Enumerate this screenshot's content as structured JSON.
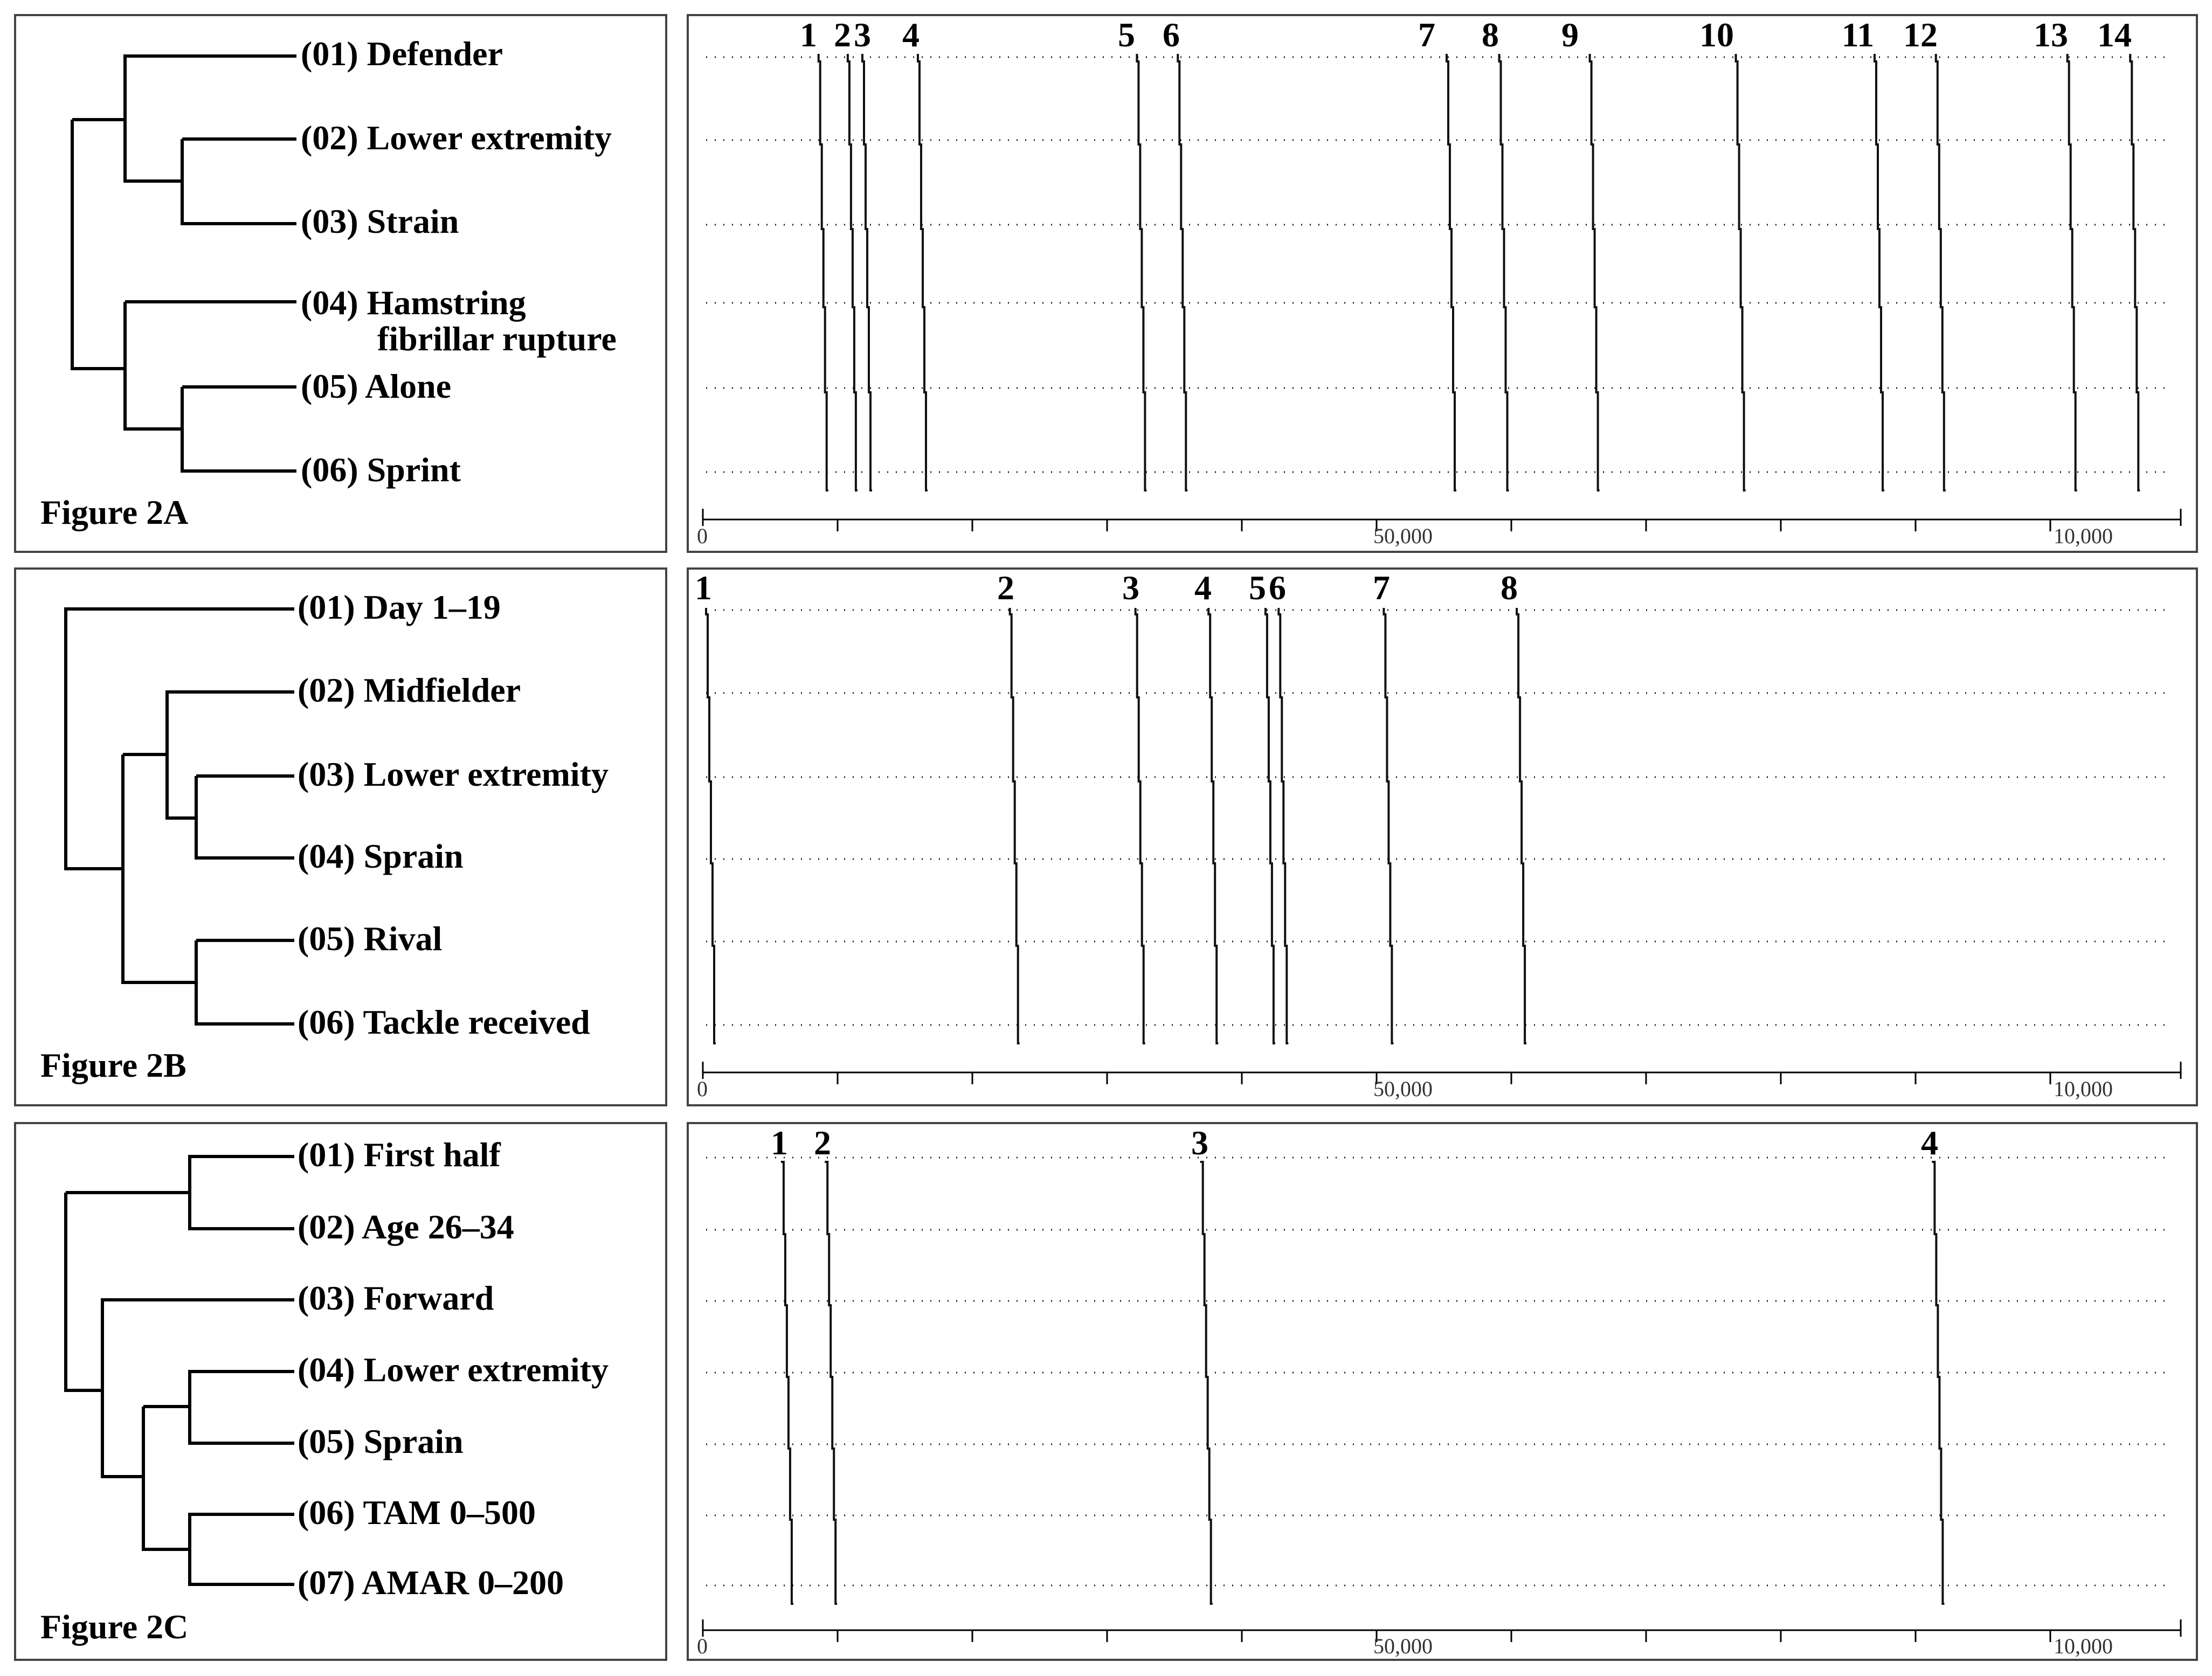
{
  "figures": [
    {
      "label": "Figure 2A",
      "dendro_labels": [
        "(01) Defender",
        "(02) Lower extremity",
        "(03) Strain",
        "(04) Hamstring",
        "fibrillar rupture",
        "(05) Alone",
        "(06) Sprint"
      ],
      "tick_labels": [
        "0",
        "50,000",
        "10,000"
      ],
      "event_numbers": [
        "1",
        "2",
        "3",
        "4",
        "5",
        "6",
        "7",
        "8",
        "9",
        "10",
        "11",
        "12",
        "13",
        "14"
      ]
    },
    {
      "label": "Figure 2B",
      "dendro_labels": [
        "(01) Day 1–19",
        "(02) Midfielder",
        "(03) Lower extremity",
        "(04) Sprain",
        "(05) Rival",
        "(06) Tackle received"
      ],
      "tick_labels": [
        "0",
        "50,000",
        "10,000"
      ],
      "event_numbers": [
        "1",
        "2",
        "3",
        "4",
        "5",
        "6",
        "7",
        "8"
      ]
    },
    {
      "label": "Figure 2C",
      "dendro_labels": [
        "(01) First half",
        "(02) Age 26–34",
        "(03) Forward",
        "(04) Lower extremity",
        "(05) Sprain",
        "(06) TAM 0–500",
        "(07) AMAR 0–200"
      ],
      "tick_labels": [
        "0",
        "50,000",
        "10,000"
      ],
      "event_numbers": [
        "1",
        "2",
        "3",
        "4"
      ]
    }
  ],
  "chart_data": [
    {
      "type": "other",
      "title": "Figure 2A",
      "rows": [
        "(01) Defender",
        "(02) Lower extremity",
        "(03) Strain",
        "(04) Hamstring fibrillar rupture",
        "(05) Alone",
        "(06) Sprint"
      ],
      "x_ticks": [
        "0",
        "50,000",
        "10,000"
      ],
      "pattern_occurrences": [
        {
          "n": "1",
          "x": 0.077
        },
        {
          "n": "2",
          "x": 0.097
        },
        {
          "n": "3",
          "x": 0.107
        },
        {
          "n": "4",
          "x": 0.145
        },
        {
          "n": "5",
          "x": 0.295
        },
        {
          "n": "6",
          "x": 0.323
        },
        {
          "n": "7",
          "x": 0.507
        },
        {
          "n": "8",
          "x": 0.543
        },
        {
          "n": "9",
          "x": 0.605
        },
        {
          "n": "10",
          "x": 0.705
        },
        {
          "n": "11",
          "x": 0.8
        },
        {
          "n": "12",
          "x": 0.842
        },
        {
          "n": "13",
          "x": 0.932
        },
        {
          "n": "14",
          "x": 0.975
        }
      ]
    },
    {
      "type": "other",
      "title": "Figure 2B",
      "rows": [
        "(01) Day 1–19",
        "(02) Midfielder",
        "(03) Lower extremity",
        "(04) Sprain",
        "(05) Rival",
        "(06) Tackle received"
      ],
      "x_ticks": [
        "0",
        "50,000",
        "10,000"
      ],
      "pattern_occurrences": [
        {
          "n": "1",
          "x": 0.0
        },
        {
          "n": "2",
          "x": 0.208
        },
        {
          "n": "3",
          "x": 0.294
        },
        {
          "n": "4",
          "x": 0.344
        },
        {
          "n": "5",
          "x": 0.383
        },
        {
          "n": "6",
          "x": 0.392
        },
        {
          "n": "7",
          "x": 0.464
        },
        {
          "n": "8",
          "x": 0.555
        }
      ]
    },
    {
      "type": "other",
      "title": "Figure 2C",
      "rows": [
        "(01) First half",
        "(02) Age 26–34",
        "(03) Forward",
        "(04) Lower extremity",
        "(05) Sprain",
        "(06) TAM 0–500",
        "(07) AMAR 0–200"
      ],
      "x_ticks": [
        "0",
        "50,000",
        "10,000"
      ],
      "pattern_occurrences": [
        {
          "n": "1",
          "x": 0.052
        },
        {
          "n": "2",
          "x": 0.082
        },
        {
          "n": "3",
          "x": 0.339
        },
        {
          "n": "4",
          "x": 0.84
        }
      ]
    }
  ]
}
